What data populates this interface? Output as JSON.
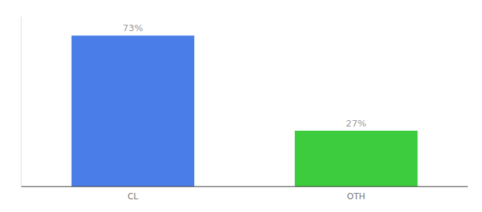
{
  "chart_data": {
    "type": "bar",
    "categories": [
      "CL",
      "OTH"
    ],
    "values": [
      73,
      27
    ],
    "value_labels": [
      "73%",
      "27%"
    ],
    "colors": [
      "#4a7de8",
      "#3dcc3d"
    ],
    "ylim": [
      0,
      82
    ],
    "data_labels": true,
    "tick_labels": "x",
    "grid": false
  }
}
